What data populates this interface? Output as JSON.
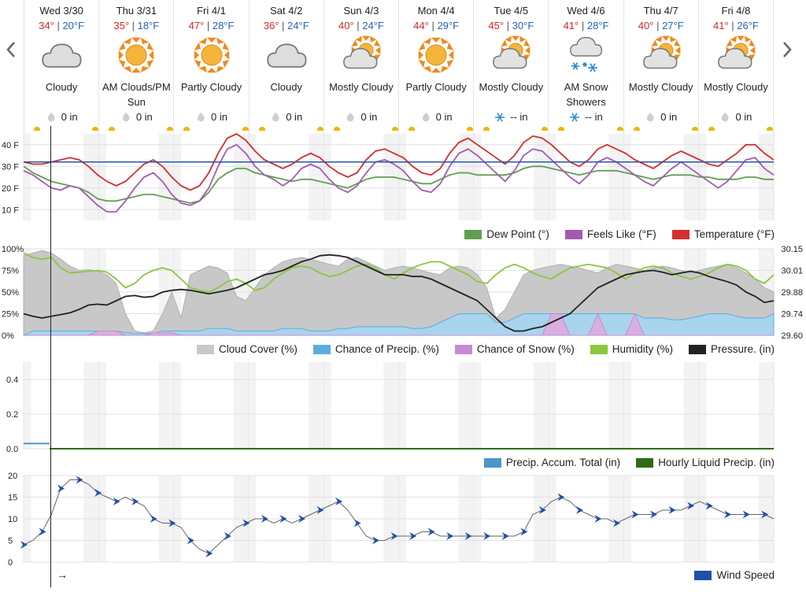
{
  "nav": {
    "prev": "previous-days",
    "next": "next-days"
  },
  "days": [
    {
      "date": "Wed 3/30",
      "high": "34°",
      "low": "20°F",
      "icon": "cloudy",
      "condition": "Cloudy",
      "precip": "0 in",
      "precip_icon": "rain-drop"
    },
    {
      "date": "Thu 3/31",
      "high": "35°",
      "low": "18°F",
      "icon": "sunny",
      "condition": "AM Clouds/PM Sun",
      "precip": "0 in",
      "precip_icon": "rain-drop"
    },
    {
      "date": "Fri 4/1",
      "high": "47°",
      "low": "28°F",
      "icon": "sunny",
      "condition": "Partly Cloudy",
      "precip": "0 in",
      "precip_icon": "rain-drop"
    },
    {
      "date": "Sat 4/2",
      "high": "36°",
      "low": "24°F",
      "icon": "cloudy",
      "condition": "Cloudy",
      "precip": "0 in",
      "precip_icon": "rain-drop"
    },
    {
      "date": "Sun 4/3",
      "high": "40°",
      "low": "24°F",
      "icon": "mostly-cloudy",
      "condition": "Mostly Cloudy",
      "precip": "0 in",
      "precip_icon": "rain-drop"
    },
    {
      "date": "Mon 4/4",
      "high": "44°",
      "low": "29°F",
      "icon": "sunny",
      "condition": "Partly Cloudy",
      "precip": "0 in",
      "precip_icon": "rain-drop"
    },
    {
      "date": "Tue 4/5",
      "high": "45°",
      "low": "30°F",
      "icon": "mostly-cloudy",
      "condition": "Mostly Cloudy",
      "precip": "-- in",
      "precip_icon": "snowflake"
    },
    {
      "date": "Wed 4/6",
      "high": "41°",
      "low": "28°F",
      "icon": "snow",
      "condition": "AM Snow Showers",
      "precip": "-- in",
      "precip_icon": "snowflake"
    },
    {
      "date": "Thu 4/7",
      "high": "40°",
      "low": "27°F",
      "icon": "mostly-cloudy",
      "condition": "Mostly Cloudy",
      "precip": "0 in",
      "precip_icon": "rain-drop"
    },
    {
      "date": "Fri 4/8",
      "high": "41°",
      "low": "26°F",
      "icon": "mostly-cloudy",
      "condition": "Mostly Cloudy",
      "precip": "0 in",
      "precip_icon": "rain-drop"
    }
  ],
  "colors": {
    "temperature": "#d32f2f",
    "feels_like": "#a45ab0",
    "dew_point": "#5fa050",
    "freezing": "#2655b0",
    "cloud": "#c8c8c8",
    "precip_chance": "#5aaedc",
    "snow_chance": "#c48bd4",
    "humidity": "#8cc63e",
    "pressure": "#222222",
    "accum": "#4a96c8",
    "hourly_liquid": "#2f6a1a",
    "wind": "#2050a8"
  },
  "legends": {
    "temp": [
      "Dew Point (°)",
      "Feels Like (°F)",
      "Temperature (°F)"
    ],
    "cloud": [
      "Cloud Cover (%)",
      "Chance of Precip. (%)",
      "Chance of Snow (%)",
      "Humidity (%)",
      "Pressure. (in)"
    ],
    "precip": [
      "Precip. Accum. Total (in)",
      "Hourly Liquid Precip. (in)"
    ],
    "wind": [
      "Wind Speed"
    ]
  },
  "chart_data": [
    {
      "type": "line",
      "ylim": [
        5,
        45
      ],
      "yticks": [
        "40 F",
        "30 F",
        "20 F",
        "10 F"
      ],
      "freezing_line": 32,
      "series": [
        {
          "name": "Temperature (°F)",
          "values": [
            32,
            31,
            31,
            32,
            33,
            34,
            33,
            30,
            26,
            23,
            21,
            23,
            27,
            31,
            33,
            30,
            25,
            21,
            19,
            21,
            27,
            36,
            43,
            45,
            42,
            37,
            33,
            31,
            29,
            31,
            34,
            36,
            34,
            30,
            27,
            25,
            27,
            33,
            37,
            38,
            36,
            34,
            30,
            27,
            26,
            29,
            36,
            41,
            43,
            40,
            37,
            34,
            31,
            35,
            41,
            44,
            43,
            40,
            36,
            32,
            30,
            33,
            38,
            40,
            38,
            36,
            33,
            31,
            29,
            32,
            35,
            37,
            35,
            33,
            31,
            30,
            33,
            36,
            40,
            40,
            36,
            33
          ]
        },
        {
          "name": "Feels Like (°F)",
          "values": [
            28,
            26,
            23,
            20,
            19,
            21,
            20,
            16,
            12,
            9,
            9,
            14,
            20,
            25,
            27,
            23,
            17,
            13,
            12,
            14,
            20,
            30,
            38,
            40,
            36,
            30,
            26,
            24,
            21,
            24,
            29,
            31,
            29,
            24,
            20,
            18,
            21,
            27,
            32,
            33,
            31,
            28,
            23,
            19,
            18,
            22,
            30,
            36,
            38,
            35,
            31,
            27,
            23,
            28,
            35,
            38,
            37,
            33,
            29,
            25,
            22,
            26,
            32,
            34,
            32,
            29,
            26,
            23,
            21,
            25,
            29,
            32,
            29,
            26,
            23,
            20,
            23,
            28,
            33,
            34,
            29,
            26
          ]
        },
        {
          "name": "Dew Point (°)",
          "values": [
            30,
            27,
            25,
            23,
            22,
            21,
            20,
            18,
            15,
            14,
            14,
            15,
            16,
            17,
            17,
            16,
            15,
            14,
            13,
            14,
            18,
            24,
            27,
            29,
            29,
            27,
            26,
            25,
            24,
            23,
            24,
            24,
            23,
            22,
            21,
            20,
            22,
            24,
            25,
            25,
            25,
            24,
            23,
            22,
            22,
            24,
            26,
            27,
            27,
            26,
            26,
            26,
            26,
            27,
            29,
            30,
            30,
            29,
            28,
            27,
            26,
            27,
            28,
            28,
            28,
            27,
            26,
            25,
            24,
            25,
            26,
            26,
            26,
            25,
            25,
            24,
            24,
            24,
            25,
            25,
            24,
            24
          ]
        }
      ]
    },
    {
      "type": "area",
      "ylim_left": [
        0,
        100
      ],
      "yticks_left": [
        "100%",
        "75%",
        "50%",
        "25%",
        "0%"
      ],
      "yticks_right": [
        "30.15",
        "30.01",
        "29.88",
        "29.74",
        "29.60"
      ],
      "series": [
        {
          "name": "Cloud Cover (%)",
          "values": [
            92,
            95,
            98,
            95,
            88,
            80,
            75,
            76,
            74,
            70,
            60,
            25,
            5,
            3,
            5,
            25,
            50,
            20,
            70,
            75,
            80,
            78,
            72,
            45,
            40,
            55,
            70,
            78,
            85,
            88,
            90,
            88,
            85,
            82,
            80,
            88,
            90,
            85,
            80,
            75,
            78,
            80,
            78,
            75,
            72,
            70,
            78,
            80,
            78,
            70,
            55,
            20,
            30,
            50,
            70,
            75,
            78,
            80,
            82,
            80,
            78,
            75,
            72,
            78,
            82,
            80,
            78,
            75,
            78,
            80,
            78,
            75,
            72,
            75,
            78,
            80,
            82,
            78,
            72,
            65,
            55,
            50
          ]
        },
        {
          "name": "Chance of Precip. (%)",
          "values": [
            0,
            5,
            5,
            5,
            5,
            5,
            5,
            5,
            5,
            5,
            5,
            3,
            2,
            2,
            2,
            5,
            5,
            5,
            5,
            5,
            8,
            8,
            8,
            5,
            5,
            5,
            5,
            5,
            8,
            8,
            8,
            5,
            5,
            5,
            8,
            8,
            10,
            10,
            10,
            10,
            10,
            10,
            8,
            8,
            10,
            15,
            20,
            25,
            25,
            25,
            25,
            15,
            15,
            20,
            25,
            25,
            25,
            25,
            25,
            25,
            25,
            25,
            25,
            25,
            25,
            25,
            25,
            20,
            20,
            20,
            18,
            18,
            20,
            22,
            25,
            25,
            25,
            22,
            20,
            20,
            20,
            25
          ]
        },
        {
          "name": "Chance of Snow (%)",
          "values": [
            0,
            0,
            0,
            0,
            0,
            0,
            0,
            0,
            5,
            5,
            5,
            0,
            0,
            0,
            3,
            3,
            3,
            0,
            0,
            0,
            0,
            0,
            0,
            0,
            0,
            0,
            0,
            0,
            0,
            0,
            0,
            0,
            0,
            0,
            0,
            0,
            0,
            0,
            0,
            0,
            0,
            0,
            0,
            0,
            0,
            0,
            0,
            0,
            0,
            0,
            0,
            0,
            0,
            0,
            0,
            0,
            0,
            25,
            25,
            0,
            0,
            0,
            25,
            0,
            0,
            0,
            25,
            0,
            0,
            0,
            0,
            0,
            0,
            0,
            0,
            0,
            0,
            0,
            0,
            0,
            0,
            0
          ]
        },
        {
          "name": "Humidity (%)",
          "values": [
            95,
            90,
            88,
            90,
            78,
            72,
            73,
            74,
            75,
            73,
            65,
            55,
            60,
            70,
            75,
            78,
            75,
            65,
            55,
            52,
            50,
            55,
            62,
            65,
            60,
            52,
            55,
            65,
            72,
            78,
            80,
            78,
            72,
            68,
            70,
            75,
            80,
            82,
            78,
            70,
            65,
            72,
            78,
            82,
            85,
            85,
            80,
            75,
            70,
            62,
            60,
            70,
            78,
            82,
            78,
            72,
            68,
            65,
            72,
            78,
            80,
            82,
            80,
            78,
            72,
            65,
            72,
            78,
            80,
            78,
            72,
            68,
            65,
            68,
            72,
            78,
            82,
            80,
            75,
            65,
            60,
            70
          ]
        },
        {
          "name": "Pressure. (in)",
          "values": [
            25,
            22,
            20,
            22,
            24,
            26,
            30,
            35,
            36,
            35,
            40,
            45,
            46,
            44,
            45,
            50,
            52,
            53,
            52,
            50,
            48,
            50,
            52,
            55,
            60,
            65,
            70,
            72,
            75,
            80,
            85,
            88,
            92,
            93,
            92,
            90,
            85,
            80,
            75,
            70,
            70,
            70,
            68,
            68,
            65,
            60,
            55,
            50,
            45,
            40,
            30,
            20,
            10,
            5,
            5,
            8,
            10,
            15,
            20,
            25,
            35,
            45,
            55,
            60,
            65,
            70,
            72,
            74,
            75,
            73,
            70,
            72,
            74,
            72,
            68,
            65,
            62,
            58,
            50,
            45,
            38,
            40
          ]
        }
      ]
    },
    {
      "type": "line",
      "ylim": [
        0,
        0.5
      ],
      "yticks": [
        "0.4",
        "0.2",
        "0.0"
      ],
      "series": [
        {
          "name": "Precip. Accum. Total (in)",
          "values": [
            0.03,
            0.03
          ]
        },
        {
          "name": "Hourly Liquid Precip. (in)",
          "values": [
            0,
            0,
            0,
            0,
            0,
            0,
            0,
            0,
            0,
            0
          ]
        }
      ]
    },
    {
      "type": "line",
      "ylim": [
        0,
        20
      ],
      "yticks": [
        "20",
        "15",
        "10",
        "5",
        "0"
      ],
      "series": [
        {
          "name": "Wind Speed",
          "values": [
            4,
            5,
            7,
            11,
            17,
            19,
            19,
            18,
            16,
            15,
            14,
            15,
            14,
            13,
            10,
            9,
            9,
            8,
            5,
            3,
            2,
            4,
            6,
            8,
            9,
            10,
            10,
            9,
            10,
            9,
            10,
            11,
            12,
            13,
            14,
            12,
            9,
            6,
            5,
            5,
            6,
            6,
            6,
            7,
            7,
            6,
            6,
            6,
            6,
            6,
            6,
            6,
            6,
            6,
            7,
            11,
            12,
            14,
            15,
            14,
            12,
            11,
            10,
            10,
            9,
            10,
            11,
            11,
            11,
            12,
            12,
            12,
            13,
            14,
            13,
            12,
            11,
            11,
            11,
            11,
            11,
            10
          ]
        }
      ]
    }
  ]
}
